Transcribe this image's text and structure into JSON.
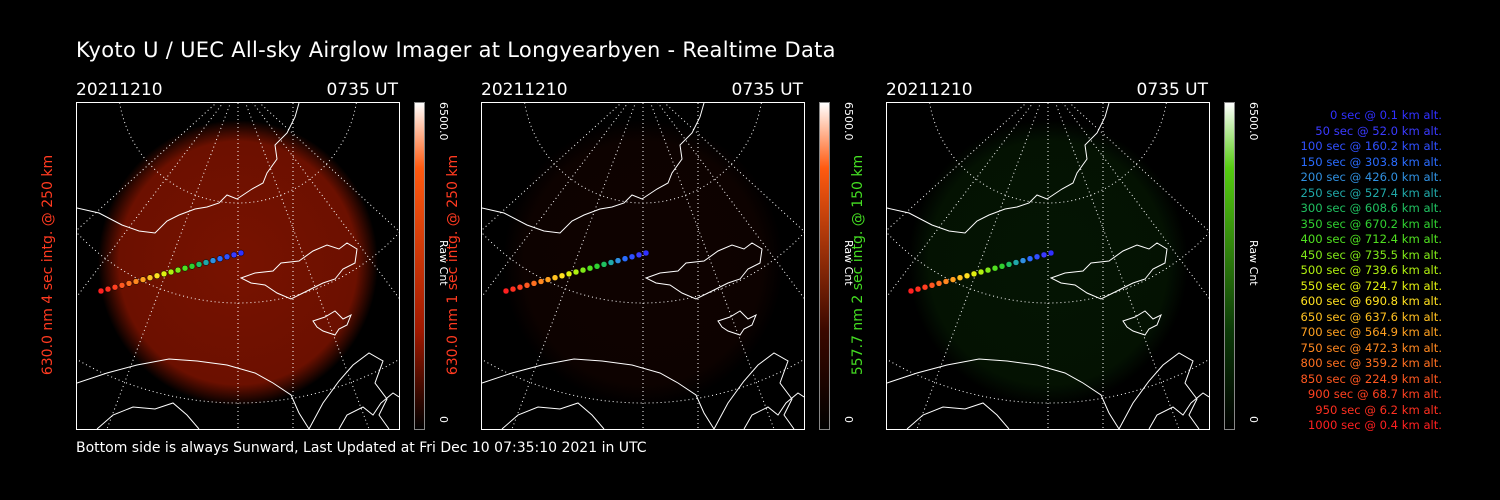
{
  "title": "Kyoto U / UEC All-sky Airglow Imager at Longyearbyen - Realtime Data",
  "footer": "Bottom side is always Sunward, Last Updated at Fri Dec 10 07:35:10 2021 in UTC",
  "panels": [
    {
      "date": "20211210",
      "time": "0735 UT",
      "ylabel": "630.0 nm 4 sec intg. @ 250 km",
      "cbar_max": "6500.0",
      "cbar_unit": "Raw Cnt",
      "cbar_min": "0",
      "label_color": "#ff3a20",
      "glow_color": "#a01800",
      "glow_level": 0.75,
      "cbar_top": "#ff5a10"
    },
    {
      "date": "20211210",
      "time": "0735 UT",
      "ylabel": "630.0 nm 1 sec intg. @ 250 km",
      "cbar_max": "6500.0",
      "cbar_unit": "Raw Cnt",
      "cbar_min": "0",
      "label_color": "#ff3a20",
      "glow_color": "#3a0800",
      "glow_level": 0.25,
      "cbar_top": "#ff5a10"
    },
    {
      "date": "20211210",
      "time": "0735 UT",
      "ylabel": "557.7 nm 2 sec intg. @ 150 km",
      "cbar_max": "6500.0",
      "cbar_unit": "Raw Cnt",
      "cbar_min": "0",
      "label_color": "#44dd22",
      "glow_color": "#0c3a08",
      "glow_level": 0.35,
      "cbar_top": "#55cc10"
    }
  ],
  "legend": [
    {
      "text": "0 sec @   0.1 km alt.",
      "color": "#3030ff"
    },
    {
      "text": "50 sec @  52.0 km alt.",
      "color": "#3a3aff"
    },
    {
      "text": "100 sec @ 160.2 km alt.",
      "color": "#3050ff"
    },
    {
      "text": "150 sec @ 303.8 km alt.",
      "color": "#2a6cff"
    },
    {
      "text": "200 sec @ 426.0 km alt.",
      "color": "#3090e0"
    },
    {
      "text": "250 sec @ 527.4 km alt.",
      "color": "#20a8a8"
    },
    {
      "text": "300 sec @ 608.6 km alt.",
      "color": "#20c060"
    },
    {
      "text": "350 sec @ 670.2 km alt.",
      "color": "#30d030"
    },
    {
      "text": "400 sec @ 712.4 km alt.",
      "color": "#50e020"
    },
    {
      "text": "450 sec @ 735.5 km alt.",
      "color": "#80e818"
    },
    {
      "text": "500 sec @ 739.6 km alt.",
      "color": "#b0f010"
    },
    {
      "text": "550 sec @ 724.7 km alt.",
      "color": "#e0f010"
    },
    {
      "text": "600 sec @ 690.8 km alt.",
      "color": "#ffe020"
    },
    {
      "text": "650 sec @ 637.6 km alt.",
      "color": "#ffc020"
    },
    {
      "text": "700 sec @ 564.9 km alt.",
      "color": "#ffa020"
    },
    {
      "text": "750 sec @ 472.3 km alt.",
      "color": "#ff8820"
    },
    {
      "text": "800 sec @ 359.2 km alt.",
      "color": "#ff7020"
    },
    {
      "text": "850 sec @ 224.9 km alt.",
      "color": "#ff5820"
    },
    {
      "text": "900 sec @  68.7 km alt.",
      "color": "#ff4020"
    },
    {
      "text": "950 sec @   6.2 km alt.",
      "color": "#ff3020"
    },
    {
      "text": "1000 sec @   0.4 km alt.",
      "color": "#ff2020"
    }
  ]
}
